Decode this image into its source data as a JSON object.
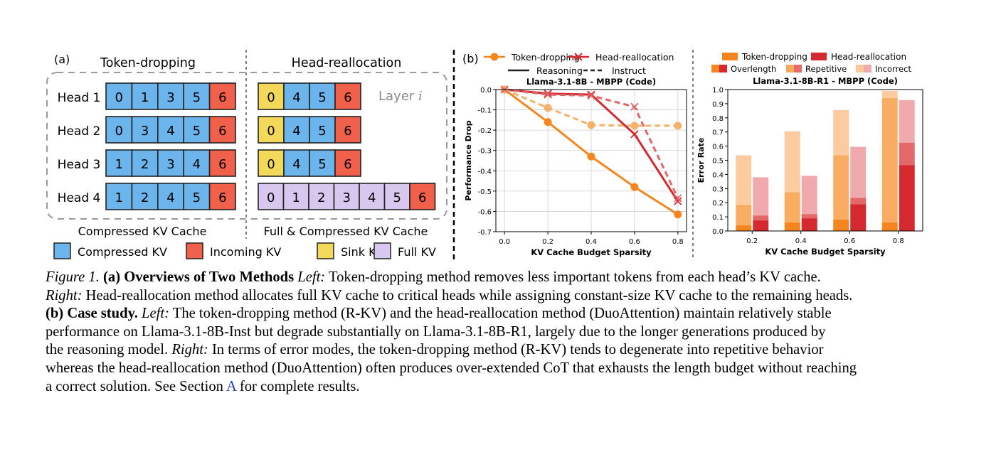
{
  "panel_a": {
    "tag": "(a)",
    "left_title": "Token-dropping",
    "right_title": "Head-reallocation",
    "layer_label": "Layer",
    "layer_index": "i",
    "left_caption": "Compressed KV Cache",
    "right_caption": "Full & Compressed KV Cache",
    "rows": [
      {
        "label": "Head 1",
        "left": [
          "0",
          "1",
          "3",
          "5",
          "6"
        ],
        "right": [
          "0",
          "4",
          "5",
          "6"
        ],
        "right_kind": "compressed"
      },
      {
        "label": "Head 2",
        "left": [
          "0",
          "3",
          "4",
          "5",
          "6"
        ],
        "right": [
          "0",
          "4",
          "5",
          "6"
        ],
        "right_kind": "compressed"
      },
      {
        "label": "Head 3",
        "left": [
          "1",
          "2",
          "3",
          "4",
          "6"
        ],
        "right": [
          "0",
          "4",
          "5",
          "6"
        ],
        "right_kind": "compressed"
      },
      {
        "label": "Head 4",
        "left": [
          "1",
          "2",
          "4",
          "5",
          "6"
        ],
        "right": [
          "0",
          "1",
          "2",
          "3",
          "4",
          "5",
          "6"
        ],
        "right_kind": "full"
      }
    ],
    "legend": [
      {
        "label": "Compressed KV",
        "color": "#6cb4ec"
      },
      {
        "label": "Incoming KV",
        "color": "#f0604a"
      },
      {
        "label": "Sink KV",
        "color": "#f2d95a"
      },
      {
        "label": "Full KV",
        "color": "#d8c8ef"
      }
    ]
  },
  "panel_b_tag": "(b)",
  "chart_data": [
    {
      "type": "line",
      "title": "Llama-3.1-8B - MBPP (Code)",
      "xlabel": "KV Cache Budget Sparsity",
      "ylabel": "Performance Drop",
      "x": [
        0.0,
        0.2,
        0.4,
        0.6,
        0.8
      ],
      "xticks": [
        "0.0",
        "0.2",
        "0.4",
        "0.6",
        "0.8"
      ],
      "yticks": [
        "0.0",
        "-0.1",
        "-0.2",
        "-0.3",
        "-0.4",
        "-0.5",
        "-0.6",
        "-0.7"
      ],
      "xlim": [
        -0.04,
        0.84
      ],
      "ylim": [
        -0.7,
        0.0
      ],
      "grid": true,
      "legend_methods": [
        {
          "name": "Token-dropping",
          "color": "#f5861f",
          "marker": "circle"
        },
        {
          "name": "Head-reallocation",
          "color": "#d42a2f",
          "marker": "x"
        }
      ],
      "legend_styles": [
        {
          "name": "Reasoning",
          "dash": "solid"
        },
        {
          "name": "Instruct",
          "dash": "dashed"
        }
      ],
      "series": [
        {
          "method": "Token-dropping",
          "style": "Reasoning",
          "color": "#f5861f",
          "marker": "circle",
          "dashed": false,
          "values": [
            0.0,
            -0.16,
            -0.33,
            -0.48,
            -0.615
          ]
        },
        {
          "method": "Token-dropping",
          "style": "Instruct",
          "color": "#f5b06a",
          "marker": "circle",
          "dashed": true,
          "values": [
            0.0,
            -0.09,
            -0.175,
            -0.178,
            -0.178
          ]
        },
        {
          "method": "Head-reallocation",
          "style": "Reasoning",
          "color": "#d42a2f",
          "marker": "x",
          "dashed": false,
          "values": [
            0.0,
            -0.02,
            -0.025,
            -0.22,
            -0.55
          ]
        },
        {
          "method": "Head-reallocation",
          "style": "Instruct",
          "color": "#e0686a",
          "marker": "x",
          "dashed": true,
          "values": [
            0.0,
            -0.025,
            -0.03,
            -0.085,
            -0.535
          ]
        }
      ]
    },
    {
      "type": "bar",
      "title": "Llama-3.1-8B-R1 - MBPP (Code)",
      "xlabel": "KV Cache Budget Sparsity",
      "ylabel": "Error Rate",
      "categories": [
        "0.2",
        "0.4",
        "0.6",
        "0.8"
      ],
      "yticks": [
        "0.0",
        "0.1",
        "0.2",
        "0.3",
        "0.4",
        "0.5",
        "0.6",
        "0.7",
        "0.8",
        "0.9",
        "1.0"
      ],
      "ylim": [
        0,
        1.0
      ],
      "stacked": true,
      "legend_methods": [
        {
          "name": "Token-dropping",
          "color": "#f5861f"
        },
        {
          "name": "Head-reallocation",
          "color": "#d42a2f"
        }
      ],
      "legend_modes": [
        {
          "name": "Overlength",
          "colors": [
            "#f5861f",
            "#d42a2f"
          ]
        },
        {
          "name": "Repetitive",
          "colors": [
            "#f7a85a",
            "#e56a6c"
          ]
        },
        {
          "name": "Incorrect",
          "colors": [
            "#fbc99c",
            "#f0a9ac"
          ]
        }
      ],
      "series": [
        {
          "method": "Token-dropping",
          "colors": [
            "#f5861f",
            "#f8ad62",
            "#fccb9f"
          ],
          "overlength": [
            0.04,
            0.06,
            0.08,
            0.06
          ],
          "repetitive": [
            0.145,
            0.215,
            0.455,
            0.88
          ],
          "incorrect": [
            0.35,
            0.43,
            0.32,
            0.05
          ]
        },
        {
          "method": "Head-reallocation",
          "colors": [
            "#d42a2f",
            "#e2686a",
            "#f0aaad"
          ],
          "overlength": [
            0.075,
            0.09,
            0.19,
            0.465
          ],
          "repetitive": [
            0.035,
            0.03,
            0.045,
            0.16
          ],
          "incorrect": [
            0.27,
            0.27,
            0.36,
            0.3
          ]
        }
      ]
    }
  ],
  "caption": {
    "figure_label": "Figure 1.",
    "part_a_title": "(a) Overviews of Two Methods",
    "left_word": "Left:",
    "line1_rest": "Token-dropping method removes less important tokens from each head’s KV cache.",
    "right_word": "Right:",
    "line2_rest": "Head-reallocation method allocates full KV cache to critical heads while assigning constant-size KV cache to the remaining heads.",
    "part_b_title": "(b) Case study.",
    "left_word_b": "Left:",
    "line3_rest": "The token-dropping method (R-KV) and the head-reallocation method (DuoAttention) maintain relatively stable",
    "line4": "performance on Llama-3.1-8B-Inst but degrade substantially on Llama-3.1-8B-R1, largely due to the longer generations produced by",
    "line5_start": "the reasoning model.",
    "right_word_b": "Right:",
    "line5_rest": "In terms of error modes, the token-dropping method (R-KV) tends to degenerate into repetitive behavior",
    "line6": "whereas the head-reallocation method (DuoAttention) often produces over-extended CoT that exhausts the length budget without reaching",
    "line7_start": "a correct solution. See Section",
    "line7_link": "A",
    "line7_end": "for complete results."
  }
}
